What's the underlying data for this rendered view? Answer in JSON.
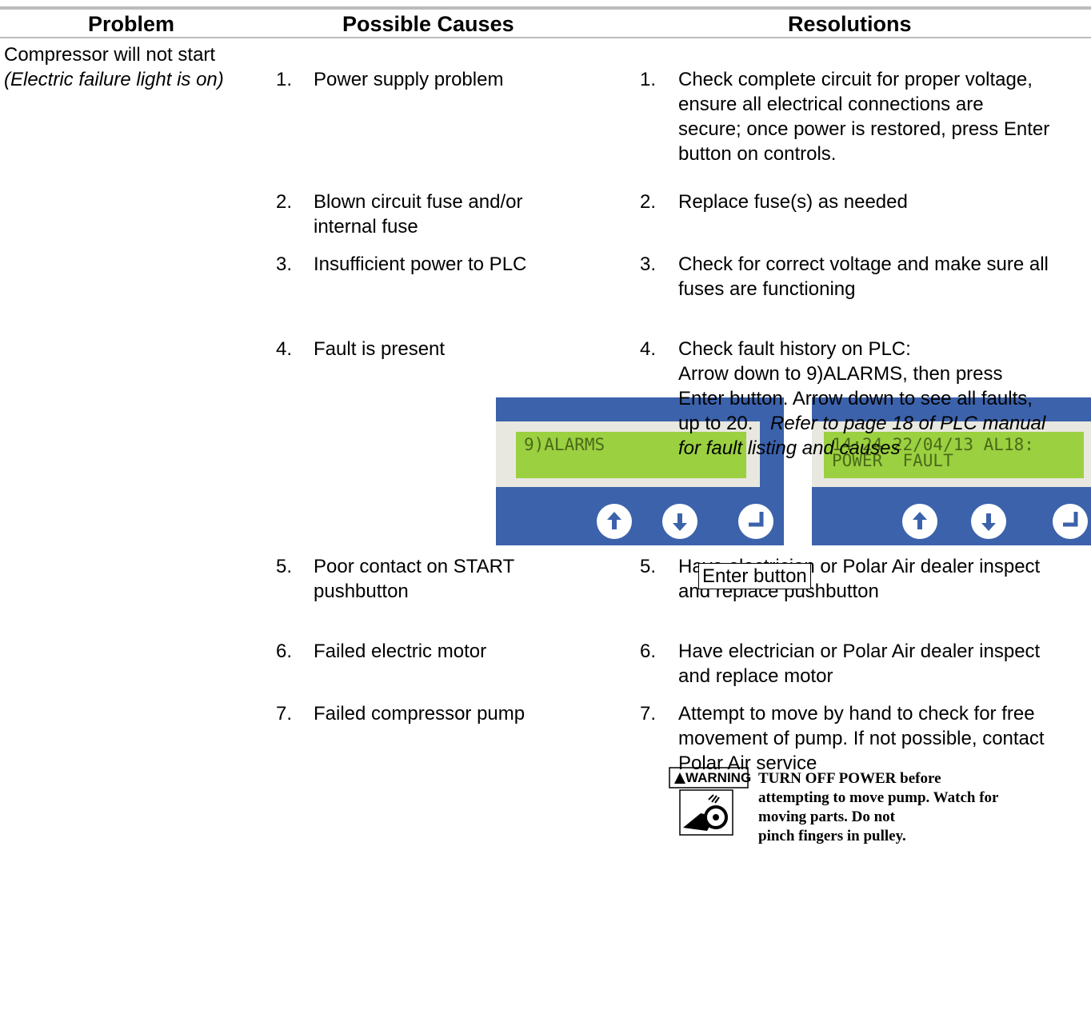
{
  "header": {
    "problem": "Problem",
    "causes": "Possible Causes",
    "resolutions": "Resolutions"
  },
  "problem": {
    "title": "Compressor will not start",
    "note": "(Electric failure light is on)"
  },
  "items": [
    {
      "number": "1.",
      "cause": [
        "Power supply problem"
      ],
      "resolution_number": "1.",
      "resolution": [
        "Check complete circuit for proper voltage,",
        "ensure all electrical connections are",
        "secure; once power is restored, press Enter",
        "button on controls."
      ]
    },
    {
      "number": "2.",
      "cause": [
        "Blown circuit fuse and/or",
        "internal fuse"
      ],
      "resolution_number": "2.",
      "resolution": [
        "Replace fuse(s) as needed"
      ]
    },
    {
      "number": "3.",
      "cause": [
        "Insufficient power to PLC"
      ],
      "resolution_number": "3.",
      "resolution": [
        "Check for correct voltage and make sure all",
        "fuses are functioning"
      ]
    },
    {
      "number": "4.",
      "cause": [
        "Fault is present"
      ],
      "resolution_number": "4.",
      "resolution": [
        "Check fault history on PLC:",
        "Arrow down to 9)ALARMS, then press",
        "Enter button.  Arrow down to see all faults,",
        "up to 20."
      ],
      "italic_resolution": [
        "Refer to page 18 of PLC manual",
        "for fault listing and causes"
      ]
    },
    {
      "number": "5.",
      "cause": [
        "Poor contact on START",
        "pushbutton"
      ],
      "resolution_number": "5.",
      "resolution": [
        "Have electrician or Polar Air dealer inspect",
        "and replace pushbutton"
      ]
    },
    {
      "number": "6.",
      "cause": [
        "Failed electric motor"
      ],
      "resolution_number": "6.",
      "resolution": [
        "Have electrician or Polar Air dealer inspect",
        "and replace motor"
      ]
    },
    {
      "number": "7.",
      "cause": [
        "Failed compressor pump"
      ],
      "resolution_number": "7.",
      "resolution": [
        "Attempt to move by hand to check for free",
        "movement of pump.  If not possible, contact",
        "Polar Air service"
      ]
    }
  ],
  "images": {
    "left_lcd": [
      "9)ALARMS"
    ],
    "right_lcd": [
      "14:24 22/04/13 AL18:",
      "POWER  FAULT"
    ],
    "callout": "Enter button"
  },
  "warning": {
    "label": "WARNING",
    "text": [
      "TURN OFF POWER before",
      "attempting to move pump. Watch for",
      "moving parts. Do not",
      "pinch fingers in pulley."
    ]
  }
}
